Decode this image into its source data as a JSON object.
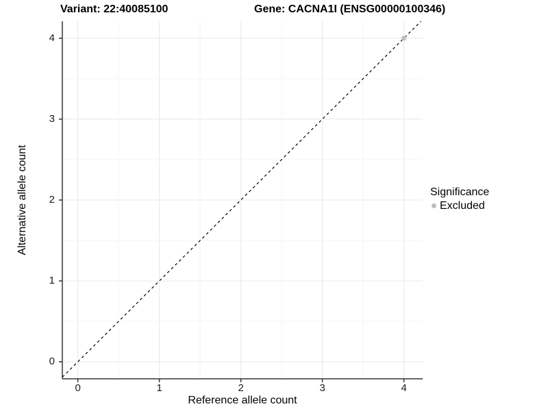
{
  "chart_data": {
    "type": "scatter",
    "title_left": "Variant: 22:40085100",
    "title_right": "Gene: CACNA1I (ENSG00000100346)",
    "xlabel": "Reference allele count",
    "ylabel": "Alternative allele count",
    "xlim": [
      -0.19,
      4.23
    ],
    "ylim": [
      -0.21,
      4.21
    ],
    "xticks": [
      0,
      1,
      2,
      3,
      4
    ],
    "yticks": [
      0,
      1,
      2,
      3,
      4
    ],
    "minor_grid_interval": 0.5,
    "grid": true,
    "series": [
      {
        "name": "Excluded",
        "color": "#bebebe",
        "points": [
          {
            "x": 4,
            "y": 4
          }
        ]
      }
    ],
    "reference_line": {
      "kind": "identity",
      "style": "dashed",
      "color": "#000000"
    },
    "legend": {
      "title": "Significance",
      "position": "right",
      "items": [
        {
          "label": "Excluded",
          "color": "#bebebe"
        }
      ]
    },
    "colors": {
      "panel_background": "#ffffff",
      "axis_line": "#333333",
      "tick_mark": "#333333",
      "major_grid": "#e8e8e8",
      "minor_grid": "#f4f4f4",
      "text": "#000000"
    }
  }
}
